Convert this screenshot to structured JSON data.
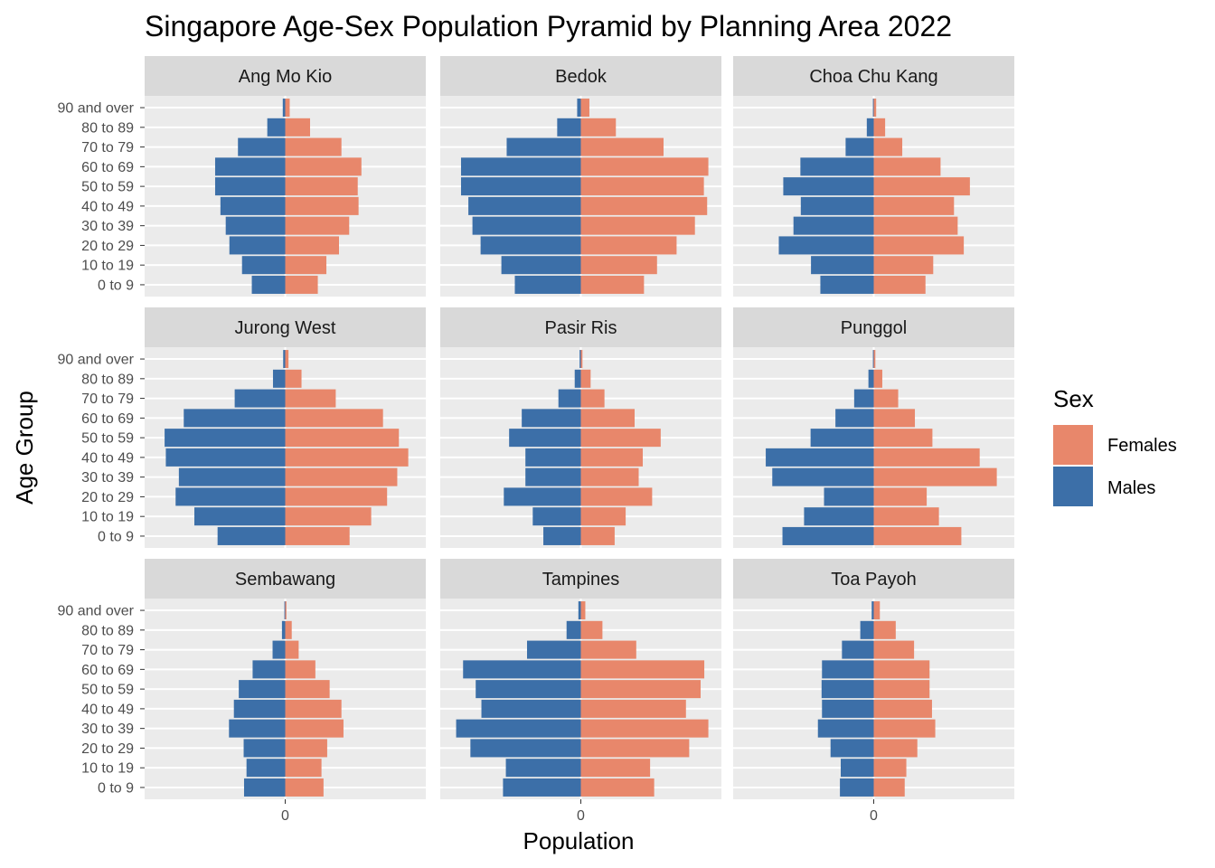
{
  "chart_data": {
    "type": "bar",
    "title": "Singapore Age-Sex Population Pyramid by Planning Area 2022",
    "xlabel": "Population",
    "ylabel": "Age Group",
    "x_tick_label": "0",
    "age_groups": [
      "0 to 9",
      "10 to 19",
      "20 to 29",
      "30 to 39",
      "40 to 49",
      "50 to 59",
      "60 to 69",
      "70 to 79",
      "80 to 89",
      "90 and over"
    ],
    "legend": {
      "title": "Sex",
      "position": "right",
      "items": [
        {
          "label": "Females",
          "color": "#E8876B"
        },
        {
          "label": "Males",
          "color": "#3C6FA8"
        }
      ]
    },
    "colors": {
      "females": "#E8876B",
      "males": "#3C6FA8",
      "panel_bg": "#EBEBEB",
      "strip_bg": "#D9D9D9",
      "grid": "#FFFFFF"
    },
    "grid": true,
    "facets": [
      {
        "name": "Ang Mo Kio",
        "males": [
          -8200,
          -10600,
          -13700,
          -14600,
          -15900,
          -17200,
          -17200,
          -11600,
          -4400,
          -600
        ],
        "females": [
          8000,
          10100,
          13200,
          15700,
          18000,
          17800,
          18700,
          13800,
          6100,
          1100
        ]
      },
      {
        "name": "Bedok",
        "males": [
          -16200,
          -19500,
          -24600,
          -26600,
          -27600,
          -29400,
          -29400,
          -18200,
          -5800,
          -900
        ],
        "females": [
          15500,
          18700,
          23500,
          28000,
          31000,
          30200,
          31300,
          20300,
          8600,
          2100
        ]
      },
      {
        "name": "Choa Chu Kang",
        "males": [
          -13100,
          -15400,
          -23300,
          -19700,
          -17900,
          -22200,
          -18000,
          -6900,
          -1700,
          -200
        ],
        "females": [
          12700,
          14600,
          22100,
          20600,
          19700,
          23600,
          16400,
          7000,
          2800,
          600
        ]
      },
      {
        "name": "Jurong West",
        "males": [
          -16600,
          -22300,
          -26900,
          -26100,
          -29300,
          -29600,
          -24900,
          -12400,
          -3000,
          -500
        ],
        "females": [
          15800,
          21100,
          25000,
          27500,
          30200,
          27900,
          24000,
          12400,
          4000,
          800
        ]
      },
      {
        "name": "Pasir Ris",
        "males": [
          -9200,
          -11800,
          -18900,
          -13600,
          -13600,
          -17600,
          -14500,
          -5500,
          -1500,
          -300
        ],
        "females": [
          8300,
          11000,
          17500,
          14200,
          15200,
          19600,
          13200,
          5800,
          2400,
          400
        ]
      },
      {
        "name": "Punggol",
        "males": [
          -22400,
          -17100,
          -12200,
          -24900,
          -26500,
          -15500,
          -9400,
          -4800,
          -1300,
          -200
        ],
        "females": [
          21500,
          16000,
          13000,
          30200,
          26000,
          14400,
          10100,
          6000,
          2100,
          400
        ]
      },
      {
        "name": "Sembawang",
        "males": [
          -10100,
          -9500,
          -10200,
          -13800,
          -12600,
          -11400,
          -8000,
          -3100,
          -800,
          -200
        ],
        "females": [
          9400,
          8900,
          10300,
          14300,
          13800,
          10900,
          7400,
          3300,
          1600,
          300
        ]
      },
      {
        "name": "Tampines",
        "males": [
          -19100,
          -18400,
          -27100,
          -30600,
          -24400,
          -25800,
          -28900,
          -13200,
          -3500,
          -600
        ],
        "females": [
          18000,
          17000,
          26600,
          31300,
          25800,
          29400,
          30300,
          13600,
          5300,
          1100
        ]
      },
      {
        "name": "Toa Payoh",
        "males": [
          -8300,
          -8100,
          -10600,
          -13700,
          -12700,
          -12800,
          -12700,
          -7800,
          -3300,
          -500
        ],
        "females": [
          7600,
          8000,
          10700,
          15100,
          14300,
          13700,
          13700,
          9900,
          5400,
          1500
        ]
      }
    ],
    "x_scale_half_range": 34500
  }
}
